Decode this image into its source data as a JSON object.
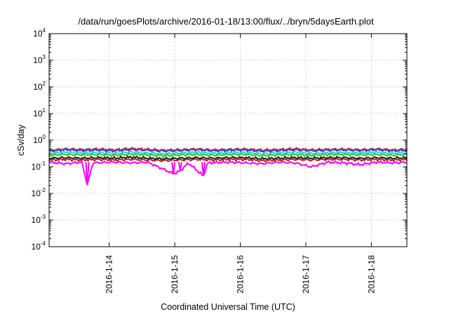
{
  "chart_data": {
    "type": "line",
    "title": "/data/run/goesPlots/archive/2016-01-18/13:00/flux/../bryn/5daysEarth.plot",
    "xlabel": "Coordinated Universal Time (UTC)",
    "ylabel": "cSv/day",
    "x_range": [
      "2016-01-13T02:00",
      "2016-01-18T13:00"
    ],
    "y_scale": "log",
    "ylim": [
      0.0001,
      10000
    ],
    "grid": true,
    "legend": "none",
    "x_ticks": [
      "2016-1-14",
      "2016-1-15",
      "2016-1-16",
      "2016-1-17",
      "2016-1-18"
    ],
    "y_ticks": [
      {
        "value": 0.0001,
        "base": "10",
        "exp": "-4"
      },
      {
        "value": 0.001,
        "base": "10",
        "exp": "-3"
      },
      {
        "value": 0.01,
        "base": "10",
        "exp": "-2"
      },
      {
        "value": 0.1,
        "base": "10",
        "exp": "-1"
      },
      {
        "value": 1,
        "base": "10",
        "exp": "0"
      },
      {
        "value": 10,
        "base": "10",
        "exp": "1"
      },
      {
        "value": 100,
        "base": "10",
        "exp": "2"
      },
      {
        "value": 1000,
        "base": "10",
        "exp": "3"
      },
      {
        "value": 10000,
        "base": "10",
        "exp": "4"
      }
    ],
    "series": [
      {
        "color": "#e8252a",
        "baseline": 0.42,
        "points": [
          [
            "2016-01-13T02:00",
            0.42
          ],
          [
            "2016-01-13T08:00",
            0.47
          ],
          [
            "2016-01-13T14:00",
            0.44
          ],
          [
            "2016-01-13T20:00",
            0.46
          ],
          [
            "2016-01-14T02:00",
            0.43
          ],
          [
            "2016-01-14T08:00",
            0.48
          ],
          [
            "2016-01-14T14:00",
            0.45
          ],
          [
            "2016-01-14T20:00",
            0.42
          ],
          [
            "2016-01-15T02:00",
            0.44
          ],
          [
            "2016-01-15T08:00",
            0.47
          ],
          [
            "2016-01-15T14:00",
            0.43
          ],
          [
            "2016-01-15T20:00",
            0.45
          ],
          [
            "2016-01-16T02:00",
            0.46
          ],
          [
            "2016-01-16T08:00",
            0.42
          ],
          [
            "2016-01-16T14:00",
            0.44
          ],
          [
            "2016-01-16T20:00",
            0.47
          ],
          [
            "2016-01-17T02:00",
            0.43
          ],
          [
            "2016-01-17T08:00",
            0.45
          ],
          [
            "2016-01-17T14:00",
            0.46
          ],
          [
            "2016-01-17T20:00",
            0.44
          ],
          [
            "2016-01-18T02:00",
            0.47
          ],
          [
            "2016-01-18T08:00",
            0.43
          ],
          [
            "2016-01-18T13:00",
            0.45
          ]
        ]
      },
      {
        "color": "#3a3adb",
        "baseline": 0.39,
        "points": [
          [
            "2016-01-13T02:00",
            0.39
          ],
          [
            "2016-01-13T08:00",
            0.44
          ],
          [
            "2016-01-13T14:00",
            0.41
          ],
          [
            "2016-01-13T20:00",
            0.43
          ],
          [
            "2016-01-14T02:00",
            0.4
          ],
          [
            "2016-01-14T08:00",
            0.45
          ],
          [
            "2016-01-14T14:00",
            0.42
          ],
          [
            "2016-01-14T20:00",
            0.39
          ],
          [
            "2016-01-15T02:00",
            0.41
          ],
          [
            "2016-01-15T08:00",
            0.44
          ],
          [
            "2016-01-15T14:00",
            0.4
          ],
          [
            "2016-01-15T20:00",
            0.42
          ],
          [
            "2016-01-16T02:00",
            0.43
          ],
          [
            "2016-01-16T08:00",
            0.39
          ],
          [
            "2016-01-16T14:00",
            0.41
          ],
          [
            "2016-01-16T20:00",
            0.44
          ],
          [
            "2016-01-17T02:00",
            0.4
          ],
          [
            "2016-01-17T08:00",
            0.42
          ],
          [
            "2016-01-17T14:00",
            0.43
          ],
          [
            "2016-01-17T20:00",
            0.41
          ],
          [
            "2016-01-18T02:00",
            0.44
          ],
          [
            "2016-01-18T08:00",
            0.4
          ],
          [
            "2016-01-18T13:00",
            0.42
          ]
        ]
      },
      {
        "color": "#1fd6c8",
        "baseline": 0.32,
        "points": [
          [
            "2016-01-13T02:00",
            0.32
          ],
          [
            "2016-01-13T08:00",
            0.35
          ],
          [
            "2016-01-13T14:00",
            0.33
          ],
          [
            "2016-01-13T20:00",
            0.34
          ],
          [
            "2016-01-14T02:00",
            0.32
          ],
          [
            "2016-01-14T08:00",
            0.36
          ],
          [
            "2016-01-14T14:00",
            0.33
          ],
          [
            "2016-01-14T20:00",
            0.31
          ],
          [
            "2016-01-15T02:00",
            0.33
          ],
          [
            "2016-01-15T08:00",
            0.35
          ],
          [
            "2016-01-15T14:00",
            0.32
          ],
          [
            "2016-01-15T20:00",
            0.34
          ],
          [
            "2016-01-16T02:00",
            0.34
          ],
          [
            "2016-01-16T08:00",
            0.31
          ],
          [
            "2016-01-16T14:00",
            0.33
          ],
          [
            "2016-01-16T20:00",
            0.35
          ],
          [
            "2016-01-17T02:00",
            0.32
          ],
          [
            "2016-01-17T08:00",
            0.34
          ],
          [
            "2016-01-17T14:00",
            0.34
          ],
          [
            "2016-01-17T20:00",
            0.33
          ],
          [
            "2016-01-18T02:00",
            0.35
          ],
          [
            "2016-01-18T08:00",
            0.32
          ],
          [
            "2016-01-18T13:00",
            0.34
          ]
        ]
      },
      {
        "color": "#2fbf2f",
        "baseline": 0.27,
        "points": [
          [
            "2016-01-13T02:00",
            0.27
          ],
          [
            "2016-01-13T08:00",
            0.29
          ],
          [
            "2016-01-13T14:00",
            0.28
          ],
          [
            "2016-01-13T20:00",
            0.29
          ],
          [
            "2016-01-14T02:00",
            0.27
          ],
          [
            "2016-01-14T08:00",
            0.3
          ],
          [
            "2016-01-14T14:00",
            0.28
          ],
          [
            "2016-01-14T20:00",
            0.26
          ],
          [
            "2016-01-15T02:00",
            0.28
          ],
          [
            "2016-01-15T08:00",
            0.29
          ],
          [
            "2016-01-15T14:00",
            0.27
          ],
          [
            "2016-01-15T20:00",
            0.29
          ],
          [
            "2016-01-16T02:00",
            0.29
          ],
          [
            "2016-01-16T08:00",
            0.26
          ],
          [
            "2016-01-16T14:00",
            0.28
          ],
          [
            "2016-01-16T20:00",
            0.29
          ],
          [
            "2016-01-17T02:00",
            0.27
          ],
          [
            "2016-01-17T08:00",
            0.29
          ],
          [
            "2016-01-17T14:00",
            0.29
          ],
          [
            "2016-01-17T20:00",
            0.28
          ],
          [
            "2016-01-18T02:00",
            0.29
          ],
          [
            "2016-01-18T08:00",
            0.27
          ],
          [
            "2016-01-18T13:00",
            0.29
          ]
        ]
      },
      {
        "color": "#1a1a1a",
        "baseline": 0.21,
        "points": [
          [
            "2016-01-13T02:00",
            0.21
          ],
          [
            "2016-01-13T08:00",
            0.22
          ],
          [
            "2016-01-13T14:00",
            0.21
          ],
          [
            "2016-01-13T20:00",
            0.22
          ],
          [
            "2016-01-14T02:00",
            0.21
          ],
          [
            "2016-01-14T08:00",
            0.23
          ],
          [
            "2016-01-14T14:00",
            0.21
          ],
          [
            "2016-01-14T20:00",
            0.2
          ],
          [
            "2016-01-15T02:00",
            0.21
          ],
          [
            "2016-01-15T08:00",
            0.22
          ],
          [
            "2016-01-15T14:00",
            0.21
          ],
          [
            "2016-01-15T20:00",
            0.22
          ],
          [
            "2016-01-16T02:00",
            0.22
          ],
          [
            "2016-01-16T08:00",
            0.2
          ],
          [
            "2016-01-16T14:00",
            0.21
          ],
          [
            "2016-01-16T20:00",
            0.22
          ],
          [
            "2016-01-17T02:00",
            0.21
          ],
          [
            "2016-01-17T08:00",
            0.22
          ],
          [
            "2016-01-17T14:00",
            0.22
          ],
          [
            "2016-01-17T20:00",
            0.21
          ],
          [
            "2016-01-18T02:00",
            0.22
          ],
          [
            "2016-01-18T08:00",
            0.21
          ],
          [
            "2016-01-18T13:00",
            0.22
          ]
        ]
      },
      {
        "color": "#b22222",
        "baseline": 0.18,
        "points": [
          [
            "2016-01-13T02:00",
            0.18
          ],
          [
            "2016-01-13T08:00",
            0.19
          ],
          [
            "2016-01-13T14:00",
            0.18
          ],
          [
            "2016-01-13T20:00",
            0.19
          ],
          [
            "2016-01-14T02:00",
            0.18
          ],
          [
            "2016-01-14T08:00",
            0.19
          ],
          [
            "2016-01-14T14:00",
            0.18
          ],
          [
            "2016-01-14T20:00",
            0.17
          ],
          [
            "2016-01-15T02:00",
            0.18
          ],
          [
            "2016-01-15T08:00",
            0.19
          ],
          [
            "2016-01-15T14:00",
            0.18
          ],
          [
            "2016-01-15T20:00",
            0.19
          ],
          [
            "2016-01-16T02:00",
            0.19
          ],
          [
            "2016-01-16T08:00",
            0.17
          ],
          [
            "2016-01-16T14:00",
            0.18
          ],
          [
            "2016-01-16T20:00",
            0.19
          ],
          [
            "2016-01-17T02:00",
            0.18
          ],
          [
            "2016-01-17T08:00",
            0.19
          ],
          [
            "2016-01-17T14:00",
            0.19
          ],
          [
            "2016-01-17T20:00",
            0.18
          ],
          [
            "2016-01-18T02:00",
            0.19
          ],
          [
            "2016-01-18T08:00",
            0.18
          ],
          [
            "2016-01-18T13:00",
            0.19
          ]
        ]
      },
      {
        "color": "#ff00ff",
        "baseline": 0.15,
        "points": [
          [
            "2016-01-13T02:00",
            0.15
          ],
          [
            "2016-01-13T08:00",
            0.13
          ],
          [
            "2016-01-13T14:00",
            0.15
          ],
          [
            "2016-01-13T16:00",
            0.02
          ],
          [
            "2016-01-13T18:00",
            0.14
          ],
          [
            "2016-01-14T02:00",
            0.15
          ],
          [
            "2016-01-14T08:00",
            0.14
          ],
          [
            "2016-01-14T14:00",
            0.15
          ],
          [
            "2016-01-14T23:30",
            0.055
          ],
          [
            "2016-01-15T02:00",
            0.07
          ],
          [
            "2016-01-15T05:00",
            0.14
          ],
          [
            "2016-01-15T10:30",
            0.045
          ],
          [
            "2016-01-15T12:00",
            0.14
          ],
          [
            "2016-01-15T20:00",
            0.15
          ],
          [
            "2016-01-16T02:00",
            0.14
          ],
          [
            "2016-01-16T08:00",
            0.13
          ],
          [
            "2016-01-16T14:00",
            0.15
          ],
          [
            "2016-01-16T20:00",
            0.14
          ],
          [
            "2016-01-17T02:00",
            0.1
          ],
          [
            "2016-01-17T08:00",
            0.15
          ],
          [
            "2016-01-17T14:00",
            0.14
          ],
          [
            "2016-01-17T20:00",
            0.12
          ],
          [
            "2016-01-18T02:00",
            0.15
          ],
          [
            "2016-01-18T08:00",
            0.14
          ],
          [
            "2016-01-18T13:00",
            0.15
          ]
        ]
      }
    ]
  }
}
